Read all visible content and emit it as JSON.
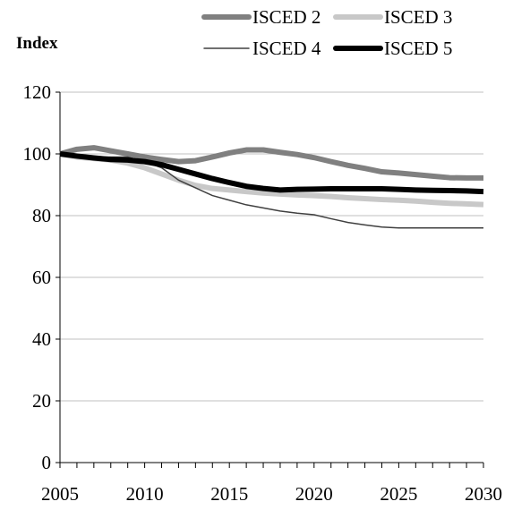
{
  "chart_data": {
    "type": "line",
    "ylabel": "Index",
    "xlim": [
      2005,
      2030
    ],
    "ylim": [
      0,
      120
    ],
    "yticks": [
      0,
      20,
      40,
      60,
      80,
      100,
      120
    ],
    "xticks": [
      2005,
      2010,
      2015,
      2020,
      2025,
      2030
    ],
    "grid": "horizontal",
    "legend_position": "top",
    "x": [
      2005,
      2006,
      2007,
      2008,
      2009,
      2010,
      2011,
      2012,
      2013,
      2014,
      2015,
      2016,
      2017,
      2018,
      2019,
      2020,
      2021,
      2022,
      2023,
      2024,
      2025,
      2026,
      2027,
      2028,
      2029,
      2030
    ],
    "series": [
      {
        "name": "ISCED 2",
        "color": "#808080",
        "width": 6,
        "values": [
          100,
          101.5,
          102,
          101,
          100,
          99,
          98.2,
          97.5,
          97.8,
          99,
          100.3,
          101.3,
          101.3,
          100.5,
          99.8,
          98.8,
          97.5,
          96.3,
          95.3,
          94.2,
          93.8,
          93.3,
          92.8,
          92.3,
          92.2,
          92.2
        ]
      },
      {
        "name": "ISCED 3",
        "color": "#c8c8c8",
        "width": 6,
        "values": [
          100,
          99,
          98.5,
          98,
          97,
          95.5,
          93.5,
          91.5,
          89.8,
          88.8,
          88.3,
          87.8,
          87.3,
          87,
          86.7,
          86.5,
          86.2,
          85.8,
          85.5,
          85.2,
          85,
          84.7,
          84.3,
          84,
          83.8,
          83.6
        ]
      },
      {
        "name": "ISCED 4",
        "color": "#404040",
        "width": 1.5,
        "values": [
          100,
          99,
          99,
          99,
          99,
          97.5,
          95.5,
          91.5,
          89,
          86.5,
          85,
          83.5,
          82.5,
          81.5,
          80.8,
          80.3,
          79,
          77.8,
          77,
          76.3,
          76,
          76,
          76,
          76,
          76,
          76
        ]
      },
      {
        "name": "ISCED 5",
        "color": "#000000",
        "width": 6,
        "values": [
          100,
          99.3,
          98.7,
          98.2,
          98,
          97.5,
          96.5,
          95,
          93.5,
          92,
          90.7,
          89.5,
          88.8,
          88.3,
          88.5,
          88.6,
          88.7,
          88.7,
          88.7,
          88.7,
          88.5,
          88.3,
          88.2,
          88.1,
          88,
          87.8
        ]
      }
    ]
  }
}
